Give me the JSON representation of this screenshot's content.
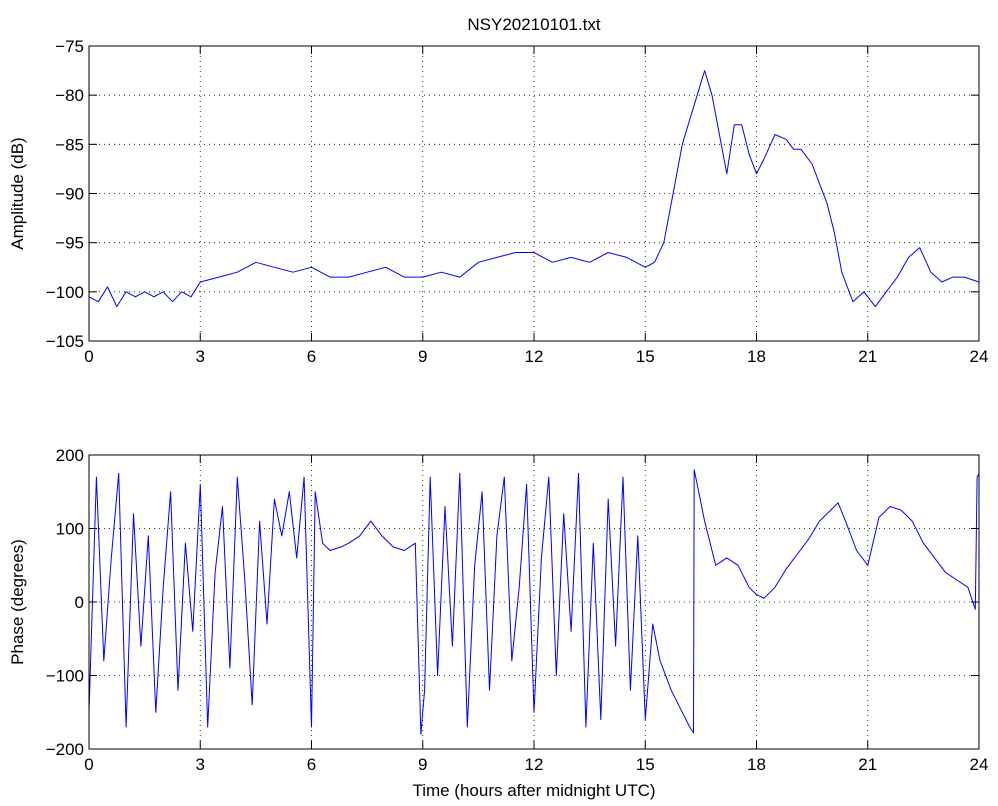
{
  "figure_title": "NSY20210101.txt",
  "chart_data": [
    {
      "type": "line",
      "title": "NSY20210101.txt",
      "xlabel": "",
      "ylabel": "Amplitude (dB)",
      "xlim": [
        0,
        24
      ],
      "ylim": [
        -105,
        -75
      ],
      "xticks": [
        0,
        3,
        6,
        9,
        12,
        15,
        18,
        21,
        24
      ],
      "xtick_labels": [
        "0",
        "3",
        "6",
        "9",
        "12",
        "15",
        "18",
        "21",
        "24"
      ],
      "yticks": [
        -105,
        -100,
        -95,
        -90,
        -85,
        -80,
        -75
      ],
      "ytick_labels": [
        "−105",
        "−100",
        "−95",
        "−90",
        "−85",
        "−80",
        "−75"
      ],
      "grid": true,
      "color": "#0000ff",
      "series": [
        {
          "x": [
            0,
            0.25,
            0.5,
            0.75,
            1,
            1.25,
            1.5,
            1.75,
            2,
            2.25,
            2.5,
            2.75,
            3,
            3.5,
            4,
            4.5,
            5,
            5.5,
            6,
            6.5,
            7,
            7.5,
            8,
            8.5,
            9,
            9.5,
            10,
            10.5,
            11,
            11.5,
            12,
            12.5,
            13,
            13.5,
            14,
            14.5,
            15,
            15.25,
            15.5,
            15.75,
            16,
            16.2,
            16.4,
            16.6,
            16.8,
            17,
            17.2,
            17.4,
            17.6,
            17.8,
            18,
            18.2,
            18.5,
            18.8,
            19,
            19.2,
            19.5,
            19.7,
            19.9,
            20.1,
            20.3,
            20.6,
            20.9,
            21.2,
            21.5,
            21.8,
            22.1,
            22.4,
            22.7,
            23,
            23.3,
            23.6,
            24
          ],
          "values": [
            -100.5,
            -101,
            -99.5,
            -101.5,
            -100,
            -100.5,
            -100,
            -100.5,
            -100,
            -101,
            -100,
            -100.5,
            -99,
            -98.5,
            -98,
            -97,
            -97.5,
            -98,
            -97.5,
            -98.5,
            -98.5,
            -98,
            -97.5,
            -98.5,
            -98.5,
            -98,
            -98.5,
            -97,
            -96.5,
            -96,
            -96,
            -97,
            -96.5,
            -97,
            -96,
            -96.5,
            -97.5,
            -97,
            -95,
            -90,
            -85,
            -82.5,
            -80,
            -77.5,
            -80,
            -84,
            -88,
            -83,
            -83,
            -86,
            -88,
            -86.5,
            -84,
            -84.5,
            -85.5,
            -85.5,
            -87,
            -89,
            -91,
            -94,
            -98,
            -101,
            -100,
            -101.5,
            -100,
            -98.5,
            -96.5,
            -95.5,
            -98,
            -99,
            -98.5,
            -98.5,
            -99
          ]
        }
      ]
    },
    {
      "type": "line",
      "title": "",
      "xlabel": "Time (hours after midnight UTC)",
      "ylabel": "Phase (degrees)",
      "xlim": [
        0,
        24
      ],
      "ylim": [
        -200,
        200
      ],
      "xticks": [
        0,
        3,
        6,
        9,
        12,
        15,
        18,
        21,
        24
      ],
      "xtick_labels": [
        "0",
        "3",
        "6",
        "9",
        "12",
        "15",
        "18",
        "21",
        "24"
      ],
      "yticks": [
        -200,
        -100,
        0,
        100,
        200
      ],
      "ytick_labels": [
        "−200",
        "−100",
        "0",
        "100",
        "200"
      ],
      "grid": true,
      "color": "#0000ff",
      "series": [
        {
          "x": [
            0,
            0.2,
            0.4,
            0.6,
            0.8,
            1,
            1.2,
            1.4,
            1.6,
            1.8,
            2,
            2.2,
            2.4,
            2.6,
            2.8,
            3,
            3.2,
            3.4,
            3.6,
            3.8,
            4,
            4.2,
            4.4,
            4.6,
            4.8,
            5,
            5.2,
            5.4,
            5.6,
            5.8,
            6,
            6.1,
            6.3,
            6.5,
            6.8,
            7,
            7.3,
            7.6,
            7.9,
            8.2,
            8.5,
            8.8,
            8.95,
            9.05,
            9.2,
            9.4,
            9.6,
            9.8,
            10,
            10.2,
            10.4,
            10.6,
            10.8,
            11,
            11.2,
            11.4,
            11.6,
            11.8,
            12,
            12.2,
            12.4,
            12.6,
            12.8,
            13,
            13.2,
            13.4,
            13.6,
            13.8,
            14,
            14.2,
            14.4,
            14.6,
            14.8,
            15,
            15.2,
            15.4,
            15.7,
            16,
            16.2,
            16.3,
            16.32,
            16.6,
            16.9,
            17.2,
            17.5,
            17.8,
            18,
            18.2,
            18.5,
            18.8,
            19.1,
            19.4,
            19.7,
            20,
            20.2,
            20.4,
            20.7,
            21,
            21.3,
            21.6,
            21.9,
            22.2,
            22.5,
            22.8,
            23.1,
            23.4,
            23.7,
            23.9,
            23.95,
            24
          ],
          "values": [
            -150,
            170,
            -80,
            60,
            175,
            -170,
            120,
            -60,
            90,
            -150,
            20,
            150,
            -120,
            80,
            -40,
            160,
            -170,
            40,
            130,
            -90,
            170,
            30,
            -140,
            110,
            -30,
            140,
            90,
            150,
            60,
            170,
            -170,
            150,
            80,
            70,
            75,
            80,
            90,
            110,
            90,
            75,
            70,
            80,
            -180,
            -120,
            170,
            -100,
            130,
            -60,
            175,
            -170,
            50,
            150,
            -120,
            90,
            170,
            -80,
            20,
            160,
            -150,
            60,
            170,
            -100,
            120,
            -40,
            175,
            -170,
            80,
            -160,
            140,
            -60,
            170,
            -120,
            90,
            -160,
            -30,
            -80,
            -120,
            -150,
            -170,
            -178,
            180,
            110,
            50,
            60,
            50,
            20,
            10,
            5,
            20,
            45,
            65,
            85,
            110,
            125,
            135,
            110,
            70,
            50,
            115,
            130,
            125,
            110,
            80,
            60,
            40,
            30,
            20,
            -10,
            170,
            175
          ]
        }
      ]
    }
  ]
}
